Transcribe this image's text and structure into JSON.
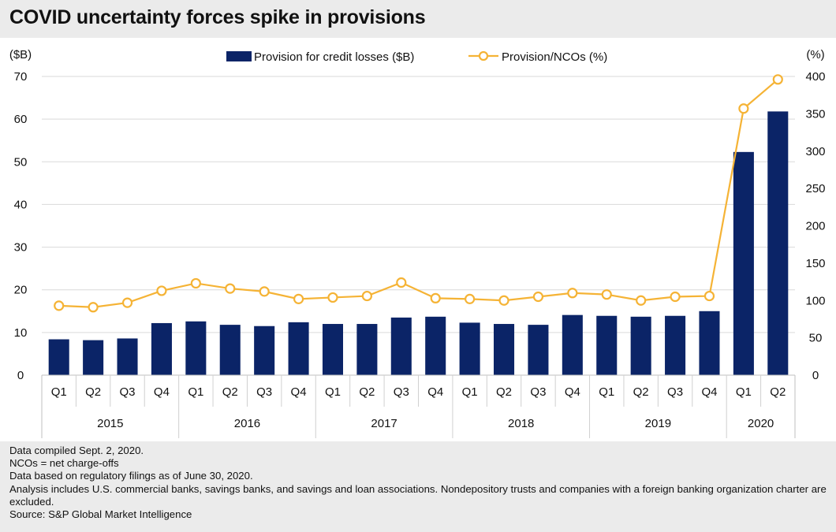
{
  "title": "COVID uncertainty forces spike in provisions",
  "notes": [
    "Data compiled Sept. 2, 2020.",
    "NCOs = net charge-offs",
    "Data based on regulatory filings as of June 30, 2020.",
    "Analysis includes U.S. commercial banks, savings banks, and savings and loan associations. Nondepository trusts and companies with a foreign banking organization charter are excluded.",
    "Source: S&P Global Market Intelligence"
  ],
  "colors": {
    "bar": "#0b2467",
    "line": "#f5b335",
    "grid": "#d9d9d9",
    "background": "#ffffff"
  },
  "chart_data": {
    "type": "bar",
    "categories": [
      "Q1",
      "Q2",
      "Q3",
      "Q4",
      "Q1",
      "Q2",
      "Q3",
      "Q4",
      "Q1",
      "Q2",
      "Q3",
      "Q4",
      "Q1",
      "Q2",
      "Q3",
      "Q4",
      "Q1",
      "Q2",
      "Q3",
      "Q4",
      "Q1",
      "Q2"
    ],
    "groups": [
      {
        "label": "2015",
        "count": 4
      },
      {
        "label": "2016",
        "count": 4
      },
      {
        "label": "2017",
        "count": 4
      },
      {
        "label": "2018",
        "count": 4
      },
      {
        "label": "2019",
        "count": 4
      },
      {
        "label": "2020",
        "count": 2
      }
    ],
    "series": [
      {
        "name": "Provision for credit losses ($B)",
        "type": "bar",
        "axis": "left",
        "values": [
          8.4,
          8.2,
          8.6,
          12.2,
          12.6,
          11.8,
          11.5,
          12.4,
          12.0,
          12.0,
          13.5,
          13.7,
          12.3,
          12.0,
          11.8,
          14.1,
          13.9,
          13.7,
          13.9,
          15.0,
          52.3,
          61.8
        ]
      },
      {
        "name": "Provision/NCOs (%)",
        "type": "line",
        "axis": "right",
        "values": [
          93,
          91,
          97,
          113,
          123,
          116,
          112,
          102,
          104,
          106,
          124,
          103,
          102,
          100,
          105,
          110,
          108,
          100,
          105,
          106,
          357,
          396
        ]
      }
    ],
    "ylabel_left": "($B)",
    "ylabel_right": "(%)",
    "ylim_left": [
      0,
      70
    ],
    "yticks_left": [
      0,
      10,
      20,
      30,
      40,
      50,
      60,
      70
    ],
    "ylim_right": [
      0,
      400
    ],
    "yticks_right": [
      0,
      50,
      100,
      150,
      200,
      250,
      300,
      350,
      400
    ],
    "grid": true,
    "legend_position": "top-center"
  }
}
